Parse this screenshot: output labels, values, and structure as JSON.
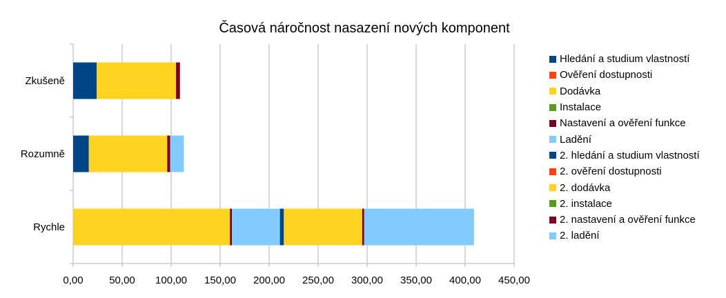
{
  "chart_data": {
    "type": "bar",
    "orientation": "horizontal",
    "stacked": true,
    "title": "Časová náročnost nasazení nových komponent",
    "xlabel": "",
    "ylabel": "",
    "categories": [
      "Zkušeně",
      "Rozumně",
      "Rychle"
    ],
    "xlim": [
      0,
      450
    ],
    "xticks": [
      0,
      50,
      100,
      150,
      200,
      250,
      300,
      350,
      400,
      450
    ],
    "xtick_labels": [
      "0,00",
      "50,00",
      "100,00",
      "150,00",
      "200,00",
      "250,00",
      "300,00",
      "350,00",
      "400,00",
      "450,00"
    ],
    "grid": "vertical",
    "legend_position": "right",
    "series": [
      {
        "name": "Hledání a studium vlastností",
        "color": "#004586",
        "values": [
          24,
          16,
          0
        ]
      },
      {
        "name": "Ověření dostupnosti",
        "color": "#ff420e",
        "values": [
          0,
          0,
          0
        ]
      },
      {
        "name": "Dodávka",
        "color": "#ffd320",
        "values": [
          81,
          80,
          160
        ]
      },
      {
        "name": "Instalace",
        "color": "#579d1c",
        "values": [
          0,
          0,
          0
        ]
      },
      {
        "name": "Nastavení a ověření funkce",
        "color": "#7e0021",
        "values": [
          4,
          3,
          2
        ]
      },
      {
        "name": "Ladění",
        "color": "#83caff",
        "values": [
          0,
          14,
          49
        ]
      },
      {
        "name": "2. hledání a studium vlastností",
        "color": "#004586",
        "values": [
          0,
          0,
          4
        ]
      },
      {
        "name": "2. ověření dostupnosti",
        "color": "#ff420e",
        "values": [
          0,
          0,
          0
        ]
      },
      {
        "name": "2. dodávka",
        "color": "#ffd320",
        "values": [
          0,
          0,
          80
        ]
      },
      {
        "name": "2. instalace",
        "color": "#579d1c",
        "values": [
          0,
          0,
          0
        ]
      },
      {
        "name": "2. nastavení a ověření funkce",
        "color": "#7e0021",
        "values": [
          0,
          0,
          2
        ]
      },
      {
        "name": "2. ladění",
        "color": "#83caff",
        "values": [
          0,
          0,
          112
        ]
      }
    ]
  }
}
